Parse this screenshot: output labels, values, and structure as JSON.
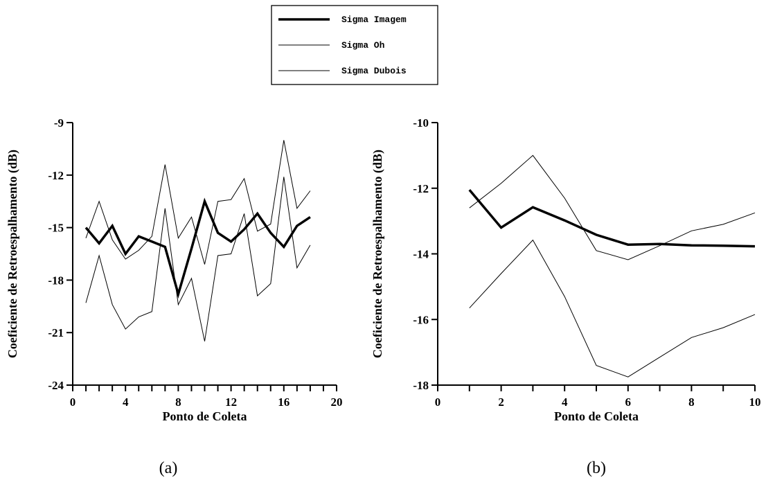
{
  "legend": {
    "entries": [
      {
        "label": "Sigma Imagem",
        "style": "thick"
      },
      {
        "label": "Sigma Oh",
        "style": "thin"
      },
      {
        "label": "Sigma Dubois",
        "style": "thin"
      }
    ]
  },
  "chart_data": [
    {
      "type": "line",
      "panel_label": "(a)",
      "xlabel": "Ponto de Coleta",
      "ylabel": "Coeficiente de Retroespalhamento (dB)",
      "xlim": [
        0,
        20
      ],
      "ylim": [
        -24,
        -9
      ],
      "xticks": [
        0,
        4,
        8,
        12,
        16,
        20
      ],
      "yticks": [
        -24,
        -21,
        -18,
        -15,
        -12,
        -9
      ],
      "x_minor_step": 1,
      "x": [
        1,
        2,
        3,
        4,
        5,
        6,
        7,
        8,
        9,
        10,
        11,
        12,
        13,
        14,
        15,
        16,
        17,
        18
      ],
      "series": [
        {
          "name": "Sigma Imagem",
          "style": "thick",
          "values": [
            -15.0,
            -15.9,
            -14.9,
            -16.5,
            -15.5,
            -15.8,
            -16.1,
            -18.8,
            -16.2,
            -13.5,
            -15.3,
            -15.8,
            -15.1,
            -14.2,
            -15.3,
            -16.1,
            -14.9,
            -14.4
          ]
        },
        {
          "name": "Sigma Oh",
          "style": "thin",
          "values": [
            -15.6,
            -13.5,
            -15.7,
            -16.8,
            -16.3,
            -15.5,
            -11.4,
            -15.6,
            -14.4,
            -17.1,
            -13.5,
            -13.4,
            -12.2,
            -15.2,
            -14.8,
            -10.0,
            -13.9,
            -12.9
          ]
        },
        {
          "name": "Sigma Dubois",
          "style": "thin",
          "values": [
            -19.3,
            -16.6,
            -19.4,
            -20.8,
            -20.1,
            -19.8,
            -13.9,
            -19.4,
            -17.9,
            -21.5,
            -16.6,
            -16.5,
            -14.2,
            -18.9,
            -18.2,
            -12.1,
            -17.3,
            -16.0
          ]
        }
      ]
    },
    {
      "type": "line",
      "panel_label": "(b)",
      "xlabel": "Ponto de Coleta",
      "ylabel": "Coeficiente de Retroespalhamento (dB)",
      "xlim": [
        0,
        10
      ],
      "ylim": [
        -18,
        -10
      ],
      "xticks": [
        0,
        2,
        4,
        6,
        8,
        10
      ],
      "yticks": [
        -18,
        -16,
        -14,
        -12,
        -10
      ],
      "x_minor_step": 1,
      "x": [
        1,
        2,
        3,
        4,
        5,
        6,
        7,
        8,
        9,
        10
      ],
      "series": [
        {
          "name": "Sigma Imagem",
          "style": "thick",
          "values": [
            -12.05,
            -13.2,
            -12.58,
            -12.98,
            -13.42,
            -13.72,
            -13.7,
            -13.74,
            -13.75,
            -13.77
          ]
        },
        {
          "name": "Sigma Oh",
          "style": "thin",
          "values": [
            -12.6,
            -11.85,
            -11.0,
            -12.3,
            -13.9,
            -14.18,
            -13.75,
            -13.3,
            -13.1,
            -12.75
          ]
        },
        {
          "name": "Sigma Dubois",
          "style": "thin",
          "values": [
            -15.65,
            -14.6,
            -13.58,
            -15.3,
            -17.4,
            -17.75,
            -17.15,
            -16.55,
            -16.25,
            -15.85
          ]
        }
      ]
    }
  ]
}
